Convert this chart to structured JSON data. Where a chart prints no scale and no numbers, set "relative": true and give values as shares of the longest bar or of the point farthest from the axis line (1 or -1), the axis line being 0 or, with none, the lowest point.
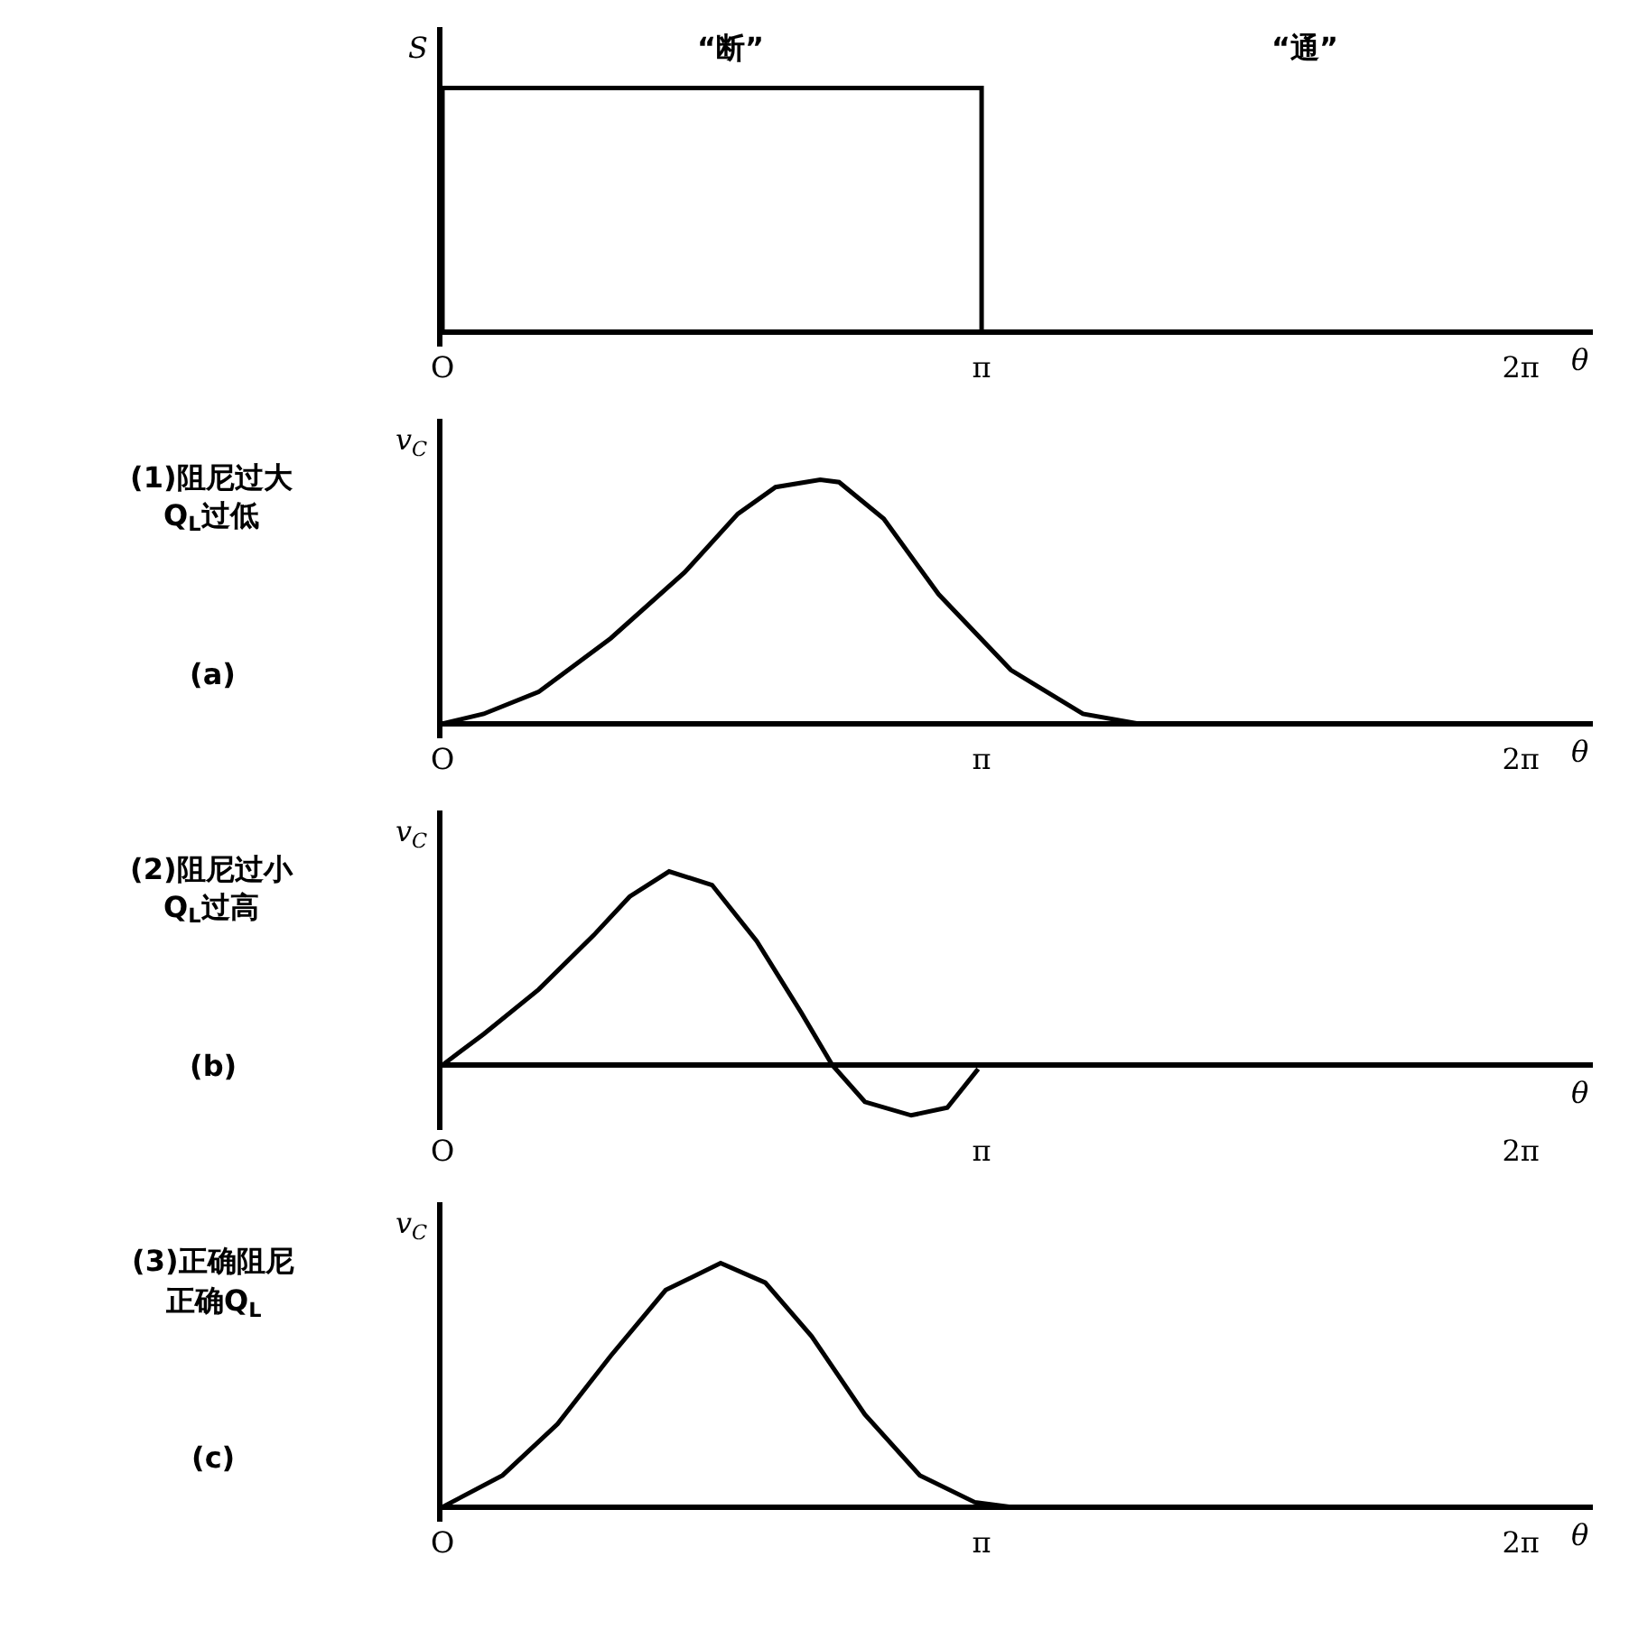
{
  "chart_data": [
    {
      "type": "line",
      "relative": true,
      "ylabel": "S",
      "xlabel": "θ",
      "tick_labels": "x",
      "grid": false,
      "marker": "none",
      "line_style": "solid",
      "xlim": [
        0,
        6.7
      ],
      "xticks": [
        {
          "value": 0,
          "label": "O"
        },
        {
          "value": 3.14,
          "label": "π"
        },
        {
          "value": 6.28,
          "label": "2π"
        }
      ],
      "annotations": [
        "“断”",
        "“通”"
      ],
      "x": [
        0,
        0,
        3.14,
        3.14,
        6.7
      ],
      "series": [
        {
          "color": "#000000",
          "values": [
            0,
            1,
            1,
            0,
            0
          ]
        }
      ]
    },
    {
      "type": "line",
      "relative": true,
      "ylabel": "v$_{C}$",
      "xlabel": "θ",
      "tick_labels": "x",
      "grid": false,
      "marker": "none",
      "line_style": "solid",
      "xlim": [
        0,
        6.7
      ],
      "xticks": [
        {
          "value": 0,
          "label": "O"
        },
        {
          "value": 3.14,
          "label": "π"
        },
        {
          "value": 6.28,
          "label": "2π"
        }
      ],
      "annotations": [
        "(1)阻尼过大\nQ$_{L}$过低",
        "(a)"
      ],
      "x": [
        0,
        0.24,
        0.56,
        0.98,
        1.41,
        1.72,
        1.94,
        2.2,
        2.31,
        2.57,
        2.89,
        3.31,
        3.73,
        4.05
      ],
      "series": [
        {
          "color": "#000000",
          "values": [
            0,
            0.04,
            0.13,
            0.35,
            0.62,
            0.86,
            0.97,
            1,
            0.99,
            0.84,
            0.53,
            0.22,
            0.04,
            0
          ]
        }
      ]
    },
    {
      "type": "line",
      "relative": true,
      "ylabel": "v$_{C}$",
      "xlabel": "θ",
      "tick_labels": "x",
      "grid": false,
      "marker": "none",
      "line_style": "solid",
      "xlim": [
        0,
        6.7
      ],
      "xticks": [
        {
          "value": 0,
          "label": "O"
        },
        {
          "value": 3.14,
          "label": "π"
        },
        {
          "value": 6.28,
          "label": "2π"
        }
      ],
      "annotations": [
        "(2)阻尼过小\nQ$_{L}$过高",
        "(b)"
      ],
      "x": [
        0,
        0.24,
        0.56,
        0.88,
        1.09,
        1.32,
        1.57,
        1.83,
        2.09,
        2.27,
        2.46,
        2.73,
        2.94,
        3.12
      ],
      "series": [
        {
          "color": "#000000",
          "values": [
            0,
            0.16,
            0.39,
            0.67,
            0.87,
            1,
            0.93,
            0.64,
            0.27,
            0,
            -0.19,
            -0.26,
            -0.22,
            -0.02
          ]
        }
      ]
    },
    {
      "type": "line",
      "relative": true,
      "ylabel": "v$_{C}$",
      "xlabel": "θ",
      "tick_labels": "x",
      "grid": false,
      "marker": "none",
      "line_style": "solid",
      "xlim": [
        0,
        6.7
      ],
      "xticks": [
        {
          "value": 0,
          "label": "O"
        },
        {
          "value": 3.14,
          "label": "π"
        },
        {
          "value": 6.28,
          "label": "2π"
        }
      ],
      "annotations": [
        "(3)正确阻尼",
        "正确Q$_{L}$",
        "(c)"
      ],
      "x": [
        0,
        0.35,
        0.67,
        0.98,
        1.3,
        1.62,
        1.88,
        2.15,
        2.46,
        2.78,
        3.1,
        3.31
      ],
      "series": [
        {
          "color": "#000000",
          "values": [
            0,
            0.13,
            0.34,
            0.62,
            0.89,
            1,
            0.92,
            0.7,
            0.38,
            0.13,
            0.02,
            0
          ]
        }
      ]
    }
  ]
}
